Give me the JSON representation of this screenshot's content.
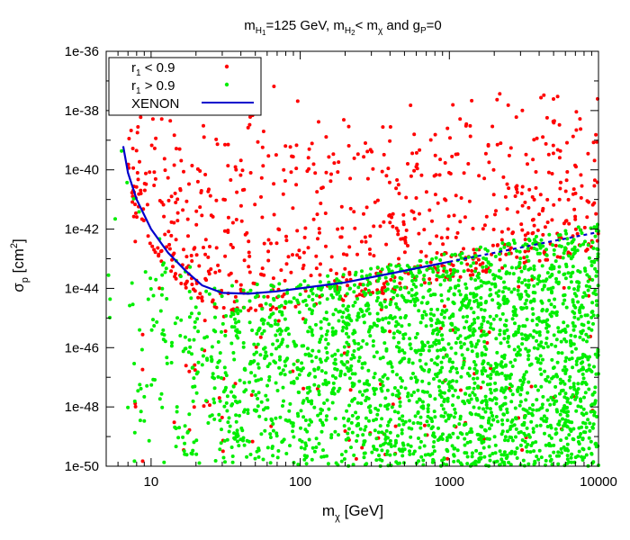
{
  "chart_data": {
    "type": "scatter",
    "title": {
      "m": "m",
      "h1": "H",
      "h1sub": "1",
      "eq": "=125 GeV,  ",
      "m2": "m",
      "h2": "H",
      "h2sub": "2",
      "lt": "< m",
      "chi": "χ",
      "and": " and g",
      "gsub": "P",
      "eq0": "=0"
    },
    "xlabel": {
      "m": "m",
      "sub": "χ",
      "unit": " [GeV]"
    },
    "ylabel": {
      "sigma": "σ",
      "sub": "p",
      "unit": " [cm",
      "exp": "2",
      "close": "]"
    },
    "xscale": "log",
    "yscale": "log",
    "xlim": [
      5,
      10000
    ],
    "ylim_exp": [
      -50,
      -36
    ],
    "xticks": [
      {
        "value": 10,
        "label": "10"
      },
      {
        "value": 100,
        "label": "100"
      },
      {
        "value": 1000,
        "label": "1000"
      },
      {
        "value": 10000,
        "label": "10000"
      }
    ],
    "yticks": [
      {
        "exp": -36,
        "label": "1e-36"
      },
      {
        "exp": -38,
        "label": "1e-38"
      },
      {
        "exp": -40,
        "label": "1e-40"
      },
      {
        "exp": -42,
        "label": "1e-42"
      },
      {
        "exp": -44,
        "label": "1e-44"
      },
      {
        "exp": -46,
        "label": "1e-46"
      },
      {
        "exp": -48,
        "label": "1e-48"
      },
      {
        "exp": -50,
        "label": "1e-50"
      }
    ],
    "legend": {
      "position": "top-left",
      "entries": [
        {
          "label_r": "r",
          "label_sub": "1",
          "label_rest": " < 0.9",
          "color": "#ff0000",
          "kind": "points"
        },
        {
          "label_r": "r",
          "label_sub": "1",
          "label_rest": " > 0.9",
          "color": "#00ee00",
          "kind": "points"
        },
        {
          "label_r": "XENON",
          "label_sub": "",
          "label_rest": "",
          "color": "#0000cc",
          "kind": "line"
        }
      ]
    },
    "series": [
      {
        "name": "r1 < 0.9",
        "color": "#ff0000",
        "count": 900,
        "region": {
          "lower_curve_offset_exp": -0.6,
          "upper_exp_min": -39.5,
          "upper_exp_max": -37.0,
          "extra_below_count": 110
        }
      },
      {
        "name": "r1 > 0.9",
        "color": "#00ee00",
        "count": 2600,
        "region": {
          "min_exp": -50,
          "upper_curve_offset_exp": 0.3
        }
      }
    ],
    "xenon": {
      "name": "XENON",
      "color": "#0000cc",
      "solid_until": 1000,
      "points": [
        {
          "x": 6.5,
          "logy": -39.2
        },
        {
          "x": 7,
          "logy": -40.1
        },
        {
          "x": 8,
          "logy": -41.0
        },
        {
          "x": 10,
          "logy": -42.0
        },
        {
          "x": 13,
          "logy": -42.8
        },
        {
          "x": 17,
          "logy": -43.4
        },
        {
          "x": 22,
          "logy": -43.9
        },
        {
          "x": 30,
          "logy": -44.15
        },
        {
          "x": 45,
          "logy": -44.18
        },
        {
          "x": 70,
          "logy": -44.1
        },
        {
          "x": 100,
          "logy": -44.0
        },
        {
          "x": 200,
          "logy": -43.8
        },
        {
          "x": 400,
          "logy": -43.5
        },
        {
          "x": 1000,
          "logy": -43.1
        },
        {
          "x": 2000,
          "logy": -42.8
        },
        {
          "x": 5000,
          "logy": -42.4
        },
        {
          "x": 10000,
          "logy": -42.1
        }
      ]
    }
  }
}
